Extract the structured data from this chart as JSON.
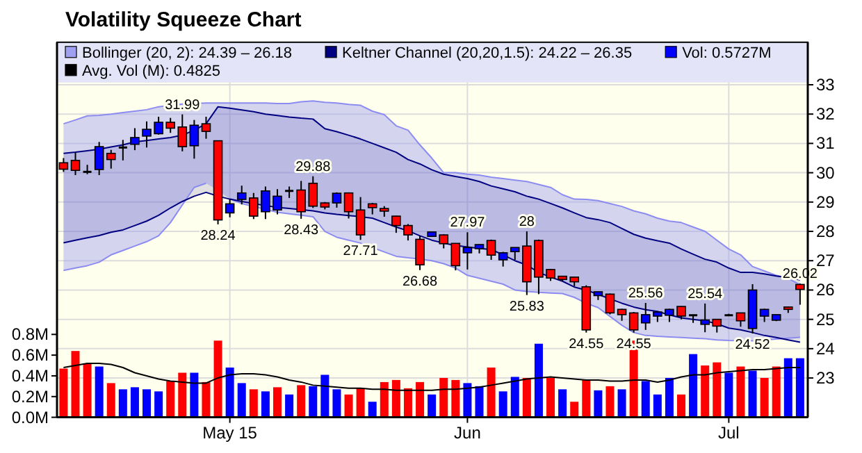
{
  "chart_data": {
    "type": "candlestick",
    "title": "Volatility Squeeze Chart",
    "categories": [
      null,
      null,
      null,
      null,
      null,
      null,
      null,
      null,
      null,
      null,
      null,
      null,
      null,
      null,
      "May 15",
      null,
      null,
      null,
      null,
      null,
      null,
      null,
      null,
      null,
      null,
      null,
      null,
      null,
      null,
      null,
      null,
      null,
      null,
      null,
      "Jun",
      null,
      null,
      null,
      null,
      null,
      null,
      null,
      null,
      null,
      null,
      null,
      null,
      null,
      null,
      null,
      null,
      null,
      null,
      null,
      null,
      null,
      "Jul",
      null,
      null,
      null,
      null,
      null,
      null
    ],
    "ohlc": [
      [
        30.34,
        30.5,
        30.03,
        30.12
      ],
      [
        30.42,
        30.69,
        29.92,
        30.08
      ],
      [
        30.03,
        30.27,
        29.95,
        30.03
      ],
      [
        30.11,
        31.05,
        29.92,
        30.89
      ],
      [
        30.66,
        30.78,
        30.14,
        30.45
      ],
      [
        30.86,
        31.12,
        30.42,
        30.86
      ],
      [
        30.97,
        31.52,
        30.77,
        31.2
      ],
      [
        31.25,
        31.75,
        30.86,
        31.48
      ],
      [
        31.33,
        31.91,
        31.3,
        31.72
      ],
      [
        31.72,
        31.87,
        31.36,
        31.52
      ],
      [
        31.56,
        31.99,
        30.73,
        30.89
      ],
      [
        30.92,
        31.8,
        30.48,
        31.62
      ],
      [
        31.67,
        31.91,
        31.16,
        31.41
      ],
      [
        31.09,
        31.09,
        28.24,
        28.39
      ],
      [
        28.63,
        29.09,
        28.48,
        28.94
      ],
      [
        29.09,
        29.56,
        28.92,
        29.31
      ],
      [
        29.14,
        29.31,
        28.42,
        28.52
      ],
      [
        28.67,
        29.53,
        28.42,
        29.38
      ],
      [
        28.73,
        29.44,
        28.58,
        29.2
      ],
      [
        29.38,
        29.53,
        29.14,
        29.38
      ],
      [
        29.41,
        29.72,
        28.43,
        28.67
      ],
      [
        29.64,
        29.88,
        28.8,
        28.86
      ],
      [
        28.97,
        29.0,
        28.75,
        28.83
      ],
      [
        28.97,
        29.33,
        28.81,
        29.3
      ],
      [
        29.31,
        29.33,
        28.44,
        28.67
      ],
      [
        28.73,
        29.17,
        27.71,
        27.88
      ],
      [
        28.94,
        28.97,
        28.58,
        28.81
      ],
      [
        28.78,
        28.86,
        28.5,
        28.69
      ],
      [
        28.52,
        28.53,
        27.95,
        28.2
      ],
      [
        28.2,
        28.25,
        27.69,
        27.88
      ],
      [
        27.73,
        27.84,
        26.68,
        26.86
      ],
      [
        27.83,
        27.98,
        27.83,
        27.98
      ],
      [
        27.88,
        27.9,
        27.42,
        27.58
      ],
      [
        27.59,
        27.6,
        26.67,
        26.83
      ],
      [
        27.27,
        27.97,
        26.7,
        27.45
      ],
      [
        27.41,
        27.56,
        27.25,
        27.55
      ],
      [
        27.69,
        27.72,
        27.03,
        27.19
      ],
      [
        27.03,
        27.3,
        26.8,
        27.27
      ],
      [
        27.31,
        27.45,
        27.03,
        27.45
      ],
      [
        27.5,
        28,
        25.83,
        26.28
      ],
      [
        27.69,
        27.72,
        25.86,
        26.44
      ],
      [
        26.7,
        26.72,
        26.31,
        26.41
      ],
      [
        26.47,
        26.48,
        26.3,
        26.36
      ],
      [
        26.44,
        26.45,
        26.13,
        26.28
      ],
      [
        26.11,
        26.16,
        24.55,
        24.64
      ],
      [
        25.81,
        25.95,
        25.66,
        25.94
      ],
      [
        25.86,
        25.88,
        25.17,
        25.22
      ],
      [
        25.34,
        25.36,
        24.95,
        25.16
      ],
      [
        25.22,
        25.25,
        24.55,
        24.64
      ],
      [
        24.88,
        25.56,
        24.64,
        25.16
      ],
      [
        25.11,
        25.25,
        24.91,
        25.25
      ],
      [
        25.14,
        25.36,
        24.91,
        25.34
      ],
      [
        25.44,
        25.45,
        25.0,
        25.11
      ],
      [
        25.14,
        25.16,
        24.88,
        25.14
      ],
      [
        24.83,
        25.54,
        24.56,
        24.98
      ],
      [
        25.0,
        25.0,
        24.55,
        24.77
      ],
      [
        25.14,
        25.19,
        25.11,
        25.14
      ],
      [
        25.22,
        25.23,
        24.75,
        24.95
      ],
      [
        24.69,
        26.2,
        24.52,
        26.0
      ],
      [
        25.11,
        25.36,
        24.91,
        25.34
      ],
      [
        24.97,
        25.17,
        24.94,
        25.16
      ],
      [
        25.42,
        25.44,
        25.22,
        25.34
      ],
      [
        26.19,
        26.22,
        25.5,
        26.02
      ]
    ],
    "colors": [
      "#ff0000",
      "#ff0000",
      "#000000",
      "#0000ff",
      "#ff0000",
      "#000000",
      "#0000ff",
      "#0000ff",
      "#0000ff",
      "#ff0000",
      "#ff0000",
      "#0000ff",
      "#ff0000",
      "#ff0000",
      "#0000ff",
      "#0000ff",
      "#ff0000",
      "#0000ff",
      "#0000ff",
      "#000000",
      "#ff0000",
      "#ff0000",
      "#ff0000",
      "#0000ff",
      "#ff0000",
      "#ff0000",
      "#ff0000",
      "#ff0000",
      "#ff0000",
      "#ff0000",
      "#ff0000",
      "#0000ff",
      "#ff0000",
      "#ff0000",
      "#0000ff",
      "#0000ff",
      "#ff0000",
      "#0000ff",
      "#0000ff",
      "#ff0000",
      "#ff0000",
      "#ff0000",
      "#ff0000",
      "#ff0000",
      "#ff0000",
      "#0000ff",
      "#ff0000",
      "#ff0000",
      "#ff0000",
      "#0000ff",
      "#0000ff",
      "#0000ff",
      "#ff0000",
      "#000000",
      "#0000ff",
      "#ff0000",
      "#000000",
      "#ff0000",
      "#0000ff",
      "#0000ff",
      "#0000ff",
      "#ff0000",
      "#ff0000"
    ],
    "ylim": [
      21.66,
      34.45
    ],
    "yticks": [
      23,
      24,
      25,
      26,
      27,
      28,
      29,
      30,
      31,
      32,
      33
    ],
    "y2lim": [
      0,
      3.62
    ],
    "y2ticks": [
      {
        "value": 0,
        "label": "0.0M"
      },
      {
        "value": 0.2,
        "label": "0.2M"
      },
      {
        "value": 0.4,
        "label": "0.4M"
      },
      {
        "value": 0.6,
        "label": "0.6M"
      },
      {
        "value": 0.8,
        "label": "0.8M"
      }
    ],
    "grid": true,
    "legend": "top",
    "annotations": [
      {
        "text": "31.99",
        "y": 31.99
      },
      {
        "text": "28.24",
        "y": 28.24
      },
      {
        "text": "29.88",
        "y": 29.88
      },
      {
        "text": "28.43",
        "y": 28.43
      },
      {
        "text": "27.71",
        "y": 27.71
      },
      {
        "text": "26.68",
        "y": 26.68
      },
      {
        "text": "27.97",
        "y": 27.97
      },
      {
        "text": "28",
        "y": 28
      },
      {
        "text": "25.83",
        "y": 25.83
      },
      {
        "text": "24.55",
        "y": 24.55
      },
      {
        "text": "24.55",
        "y": 24.55
      },
      {
        "text": "25.56",
        "y": 25.56
      },
      {
        "text": "25.54",
        "y": 25.54
      },
      {
        "text": "24.52",
        "y": 24.52
      },
      {
        "text": "26.02",
        "y": 26.02
      }
    ],
    "series": [
      {
        "type": "area",
        "name": "Bollinger (20, 2): 24.39 – 26.18",
        "color": "#a0a0f0",
        "values": [
          null,
          null,
          null,
          null,
          null,
          null,
          null,
          null,
          null,
          null,
          null,
          null,
          null,
          null,
          null,
          null,
          null,
          null,
          null,
          null,
          null,
          null,
          null,
          null,
          null,
          null,
          null,
          null,
          null,
          null,
          null,
          null,
          null,
          null,
          null,
          null,
          null,
          null,
          null,
          null,
          null,
          null,
          null,
          null,
          null,
          null,
          null,
          null,
          null,
          null,
          null,
          null,
          null,
          null,
          null,
          null,
          null,
          null,
          null,
          null,
          null,
          null,
          null
        ],
        "upper": [
          31.67,
          31.8,
          31.94,
          31.96,
          32.0,
          32.05,
          32.1,
          32.15,
          32.25,
          32.3,
          32.34,
          32.36,
          32.38,
          32.38,
          32.38,
          32.38,
          32.38,
          32.38,
          32.36,
          32.36,
          32.42,
          32.45,
          32.4,
          32.38,
          32.33,
          32.3,
          32.1,
          31.98,
          31.6,
          31.45,
          30.95,
          30.5,
          30.0,
          30.0,
          29.95,
          29.92,
          29.85,
          29.8,
          29.75,
          29.7,
          29.6,
          29.5,
          29.25,
          29.1,
          29.09,
          29.05,
          28.95,
          28.85,
          28.7,
          28.6,
          28.45,
          28.35,
          28.3,
          28.15,
          28.0,
          27.7,
          27.4,
          27.2,
          26.8,
          26.65,
          26.5,
          26.4,
          26.18
        ],
        "lower": [
          26.67,
          26.75,
          26.83,
          26.95,
          27.2,
          27.35,
          27.5,
          27.65,
          27.85,
          28.3,
          28.9,
          29.5,
          29.64,
          29.4,
          29.1,
          28.95,
          28.85,
          28.75,
          28.65,
          28.6,
          28.55,
          28.5,
          28.0,
          27.8,
          27.7,
          27.6,
          27.45,
          27.3,
          27.15,
          27.1,
          27.06,
          27.0,
          26.9,
          26.75,
          26.5,
          26.4,
          26.3,
          26.2,
          26.0,
          25.95,
          25.92,
          25.9,
          25.88,
          25.75,
          25.55,
          25.4,
          25.1,
          24.8,
          24.55,
          24.45,
          24.42,
          24.4,
          24.38,
          24.36,
          24.34,
          24.3,
          24.28,
          24.27,
          24.27,
          24.3,
          24.33,
          24.36,
          24.39
        ]
      },
      {
        "type": "area",
        "name": "Keltner Channel (20,20,1.5): 24.22 – 26.35",
        "color": "#000080",
        "values": [
          null,
          null,
          null,
          null,
          null,
          null,
          null,
          null,
          null,
          null,
          null,
          null,
          null,
          null,
          null,
          null,
          null,
          null,
          null,
          null,
          null,
          null,
          null,
          null,
          null,
          null,
          null,
          null,
          null,
          null,
          null,
          null,
          null,
          null,
          null,
          null,
          null,
          null,
          null,
          null,
          null,
          null,
          null,
          null,
          null,
          null,
          null,
          null,
          null,
          null,
          null,
          null,
          null,
          null,
          null,
          null,
          null,
          null,
          null,
          null,
          null,
          null,
          null
        ],
        "upper": [
          30.66,
          30.7,
          30.75,
          30.8,
          30.88,
          30.95,
          31.05,
          31.1,
          31.15,
          31.2,
          31.28,
          31.45,
          31.67,
          32.25,
          32.2,
          32.14,
          32.08,
          32.0,
          31.95,
          31.9,
          31.86,
          31.83,
          31.5,
          31.4,
          31.28,
          31.15,
          31.0,
          30.85,
          30.7,
          30.45,
          30.3,
          30.1,
          29.95,
          29.87,
          29.8,
          29.7,
          29.55,
          29.45,
          29.35,
          29.2,
          29.1,
          28.95,
          28.8,
          28.63,
          28.47,
          28.4,
          28.3,
          28.1,
          27.9,
          27.77,
          27.68,
          27.6,
          27.4,
          27.22,
          27.05,
          26.95,
          26.75,
          26.6,
          26.6,
          26.55,
          26.48,
          26.42,
          26.35
        ],
        "lower": [
          27.61,
          27.7,
          27.78,
          27.86,
          27.97,
          28.05,
          28.2,
          28.35,
          28.55,
          28.8,
          29.02,
          29.2,
          29.33,
          29.2,
          29.1,
          29.02,
          28.95,
          28.88,
          28.82,
          28.78,
          28.74,
          28.7,
          28.63,
          28.58,
          28.54,
          28.5,
          28.45,
          28.3,
          28.15,
          28.02,
          27.85,
          27.7,
          27.6,
          27.52,
          27.47,
          27.42,
          27.38,
          27.2,
          27.0,
          26.85,
          26.6,
          26.44,
          26.3,
          26.1,
          26.0,
          25.85,
          25.7,
          25.55,
          25.42,
          25.33,
          25.27,
          25.15,
          25.05,
          25.0,
          24.95,
          24.85,
          24.7,
          24.64,
          24.55,
          24.45,
          24.38,
          24.3,
          24.22
        ]
      },
      {
        "type": "line",
        "color": "#8c8cf0",
        "values": [
          31.67,
          31.8,
          31.94,
          31.96,
          32.0,
          32.05,
          32.1,
          32.15,
          32.25,
          32.3,
          32.34,
          32.36,
          32.38,
          32.38,
          32.38,
          32.38,
          32.38,
          32.38,
          32.36,
          32.36,
          32.42,
          32.45,
          32.4,
          32.38,
          32.33,
          32.3,
          32.1,
          31.98,
          31.6,
          31.45,
          30.95,
          30.5,
          30.0,
          30.0,
          29.95,
          29.92,
          29.85,
          29.8,
          29.75,
          29.7,
          29.6,
          29.5,
          29.25,
          29.1,
          29.09,
          29.05,
          28.95,
          28.85,
          28.7,
          28.6,
          28.45,
          28.35,
          28.3,
          28.15,
          28.0,
          27.7,
          27.4,
          27.2,
          26.8,
          26.65,
          26.5,
          26.4,
          26.18
        ]
      },
      {
        "type": "line",
        "color": "#8c8cf0",
        "values": [
          26.67,
          26.75,
          26.83,
          26.95,
          27.2,
          27.35,
          27.5,
          27.65,
          27.85,
          28.3,
          28.9,
          29.5,
          29.64,
          null,
          29.1,
          28.95,
          28.85,
          28.75,
          28.65,
          28.6,
          28.55,
          28.5,
          28.0,
          27.8,
          27.7,
          27.6,
          27.45,
          27.3,
          27.15,
          27.1,
          27.06,
          27.0,
          26.9,
          26.75,
          26.5,
          26.4,
          26.3,
          26.2,
          26.0,
          25.95,
          25.92,
          25.9,
          25.88,
          25.75,
          25.55,
          25.4,
          25.1,
          24.8,
          24.55,
          24.45,
          24.42,
          24.4,
          24.38,
          24.36,
          24.34,
          24.3,
          24.28,
          24.27,
          24.27,
          24.3,
          24.33,
          24.36,
          24.39
        ]
      },
      {
        "type": "line",
        "color": "#000080",
        "values": [
          30.66,
          30.7,
          30.75,
          30.8,
          30.88,
          30.95,
          31.05,
          31.1,
          31.15,
          31.2,
          31.28,
          31.45,
          31.67,
          32.25,
          32.2,
          32.14,
          32.08,
          32.0,
          31.95,
          31.9,
          31.86,
          31.83,
          31.5,
          31.4,
          31.28,
          31.15,
          31.0,
          30.85,
          30.7,
          30.45,
          30.3,
          30.1,
          29.95,
          29.87,
          29.8,
          29.7,
          29.55,
          29.45,
          29.35,
          29.2,
          29.1,
          28.95,
          28.8,
          28.63,
          28.47,
          28.4,
          28.3,
          28.1,
          27.9,
          27.77,
          27.68,
          27.6,
          27.4,
          27.22,
          27.05,
          26.95,
          26.75,
          26.6,
          26.6,
          26.55,
          26.48,
          26.42,
          26.35
        ]
      },
      {
        "type": "line",
        "color": "#000080",
        "values": [
          27.61,
          27.7,
          27.78,
          27.86,
          27.97,
          28.05,
          28.2,
          28.35,
          28.55,
          28.8,
          29.02,
          29.2,
          29.33,
          29.2,
          29.1,
          29.02,
          28.95,
          28.88,
          28.82,
          28.78,
          28.74,
          28.7,
          28.63,
          28.58,
          28.54,
          28.5,
          28.45,
          28.3,
          28.15,
          28.02,
          27.85,
          27.7,
          27.6,
          27.52,
          27.47,
          27.42,
          27.38,
          27.2,
          27.0,
          26.85,
          26.6,
          26.44,
          26.3,
          26.1,
          26.0,
          25.85,
          25.7,
          25.55,
          25.42,
          25.33,
          25.27,
          25.15,
          25.05,
          25.0,
          24.95,
          24.85,
          24.7,
          24.64,
          24.55,
          24.45,
          24.38,
          24.3,
          24.22
        ]
      },
      {
        "type": "bar",
        "axis": "y2",
        "name": "Vol: 0.5727M",
        "color": "#0000ff",
        "values": [
          0.47,
          0.64,
          0.52,
          0.49,
          0.33,
          0.27,
          0.29,
          0.27,
          0.25,
          0.35,
          0.43,
          0.43,
          0.34,
          0.74,
          0.48,
          0.33,
          0.27,
          0.25,
          0.29,
          0.22,
          0.31,
          0.3,
          0.41,
          0.27,
          0.22,
          0.28,
          0.15,
          0.34,
          0.36,
          0.28,
          0.34,
          0.22,
          0.38,
          0.36,
          0.33,
          0.3,
          0.48,
          0.25,
          0.39,
          0.38,
          0.71,
          0.38,
          0.27,
          0.15,
          0.36,
          0.26,
          0.3,
          0.27,
          0.74,
          0.35,
          0.22,
          0.38,
          0.22,
          0.61,
          0.5,
          0.53,
          0.43,
          0.49,
          0.45,
          0.38,
          0.49,
          0.57,
          0.57
        ],
        "colors": [
          "#ff0000",
          "#ff0000",
          "#ff0000",
          "#0000ff",
          "#ff0000",
          "#0000ff",
          "#0000ff",
          "#0000ff",
          "#0000ff",
          "#ff0000",
          "#ff0000",
          "#0000ff",
          "#ff0000",
          "#ff0000",
          "#0000ff",
          "#0000ff",
          "#ff0000",
          "#0000ff",
          "#ff0000",
          "#0000ff",
          "#ff0000",
          "#0000ff",
          "#0000ff",
          "#0000ff",
          "#ff0000",
          "#ff0000",
          "#0000ff",
          "#ff0000",
          "#ff0000",
          "#ff0000",
          "#ff0000",
          "#0000ff",
          "#ff0000",
          "#ff0000",
          "#0000ff",
          "#0000ff",
          "#ff0000",
          "#0000ff",
          "#0000ff",
          "#ff0000",
          "#0000ff",
          "#ff0000",
          "#0000ff",
          "#ff0000",
          "#ff0000",
          "#0000ff",
          "#ff0000",
          "#0000ff",
          "#ff0000",
          "#0000ff",
          "#0000ff",
          "#0000ff",
          "#ff0000",
          "#0000ff",
          "#ff0000",
          "#ff0000",
          "#0000ff",
          "#ff0000",
          "#0000ff",
          "#ff0000",
          "#ff0000",
          "#0000ff",
          "#0000ff"
        ]
      },
      {
        "type": "line",
        "axis": "y2",
        "name": "Avg. Vol (M): 0.4825",
        "color": "#000000",
        "values": [
          0.48,
          0.5,
          0.52,
          0.52,
          0.51,
          0.48,
          0.43,
          0.4,
          0.37,
          0.35,
          0.34,
          0.33,
          0.33,
          0.38,
          0.41,
          0.42,
          0.42,
          0.41,
          0.39,
          0.36,
          0.34,
          0.31,
          0.3,
          0.29,
          0.28,
          0.28,
          0.27,
          0.27,
          0.26,
          0.26,
          0.26,
          0.26,
          0.27,
          0.27,
          0.28,
          0.29,
          0.31,
          0.33,
          0.35,
          0.37,
          0.38,
          0.39,
          0.38,
          0.37,
          0.36,
          0.36,
          0.35,
          0.35,
          0.36,
          0.36,
          0.34,
          0.36,
          0.39,
          0.41,
          0.41,
          0.43,
          0.44,
          0.45,
          0.46,
          0.46,
          0.47,
          0.48,
          0.48
        ]
      }
    ]
  }
}
